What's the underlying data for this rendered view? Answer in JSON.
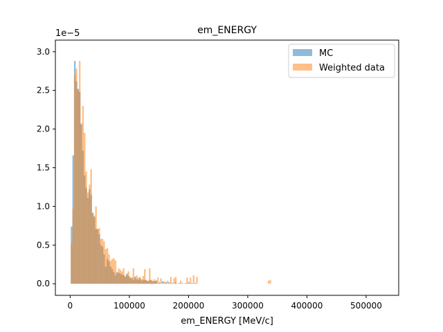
{
  "chart_data": {
    "type": "bar",
    "title": "em_ENERGY",
    "xlabel": "em_ENERGY [MeV/c]",
    "ylabel": "",
    "y_scale_label": "1e−5",
    "x_ticks": [
      0,
      100000,
      200000,
      300000,
      400000,
      500000
    ],
    "x_tick_labels": [
      "0",
      "100000",
      "200000",
      "300000",
      "400000",
      "500000"
    ],
    "y_ticks": [
      0.0,
      0.5,
      1.0,
      1.5,
      2.0,
      2.5,
      3.0
    ],
    "y_tick_labels": [
      "0.0",
      "0.5",
      "1.0",
      "1.5",
      "2.0",
      "2.5",
      "3.0"
    ],
    "xlim": [
      -25000,
      555000
    ],
    "ylim": [
      -0.15,
      3.15
    ],
    "bin_width": 2750,
    "legend_position": "upper right",
    "series": [
      {
        "name": "MC",
        "color": "#1f77b4",
        "alpha": 0.5,
        "x": [
          1000,
          3750,
          6500,
          9250,
          12000,
          14750,
          17500,
          20250,
          23000,
          25750,
          28500,
          31250,
          34000,
          36750,
          39500,
          42250,
          45000,
          47750,
          50500,
          53250,
          56000,
          58750,
          61500,
          64250,
          67000,
          69750,
          72500,
          75250,
          78000,
          80750,
          83500,
          86250,
          89000,
          91750,
          94500,
          97250,
          100000,
          102750,
          105500,
          108250,
          111000,
          113750,
          116500,
          119250,
          122000,
          124750,
          127500,
          130250,
          133000,
          135750,
          138500,
          141250,
          144000,
          149500,
          155000,
          160500,
          166000,
          171500,
          177000,
          182500,
          188000,
          193500,
          199000,
          204500,
          210000
        ],
        "values": [
          0.74,
          1.66,
          2.88,
          2.62,
          2.52,
          2.48,
          2.07,
          1.72,
          1.4,
          1.24,
          1.11,
          1.22,
          1.15,
          0.92,
          0.86,
          0.71,
          0.71,
          0.64,
          0.5,
          0.48,
          0.38,
          0.22,
          0.32,
          0.29,
          0.22,
          0.19,
          0.15,
          0.11,
          0.15,
          0.14,
          0.13,
          0.12,
          0.11,
          0.09,
          0.13,
          0.1,
          0.07,
          0.08,
          0.05,
          0.09,
          0.06,
          0.05,
          0.07,
          0.04,
          0.05,
          0.05,
          0.04,
          0.03,
          0.05,
          0.04,
          0.03,
          0.03,
          0.04,
          0.02,
          0.03,
          0.02,
          0.02,
          0.01,
          0.02,
          0.01,
          0.01,
          0.01,
          0.02,
          0.01,
          0.01
        ]
      },
      {
        "name": "Weighted data",
        "color": "#ff7f0e",
        "alpha": 0.5,
        "x": [
          1000,
          3750,
          6500,
          9250,
          12000,
          14750,
          17500,
          20250,
          23000,
          25750,
          28500,
          31250,
          34000,
          36750,
          39500,
          42250,
          45000,
          47750,
          50500,
          53250,
          56000,
          58750,
          61500,
          64250,
          67000,
          69750,
          72500,
          75250,
          78000,
          80750,
          83500,
          86250,
          89000,
          91750,
          94500,
          97250,
          100000,
          102750,
          105500,
          108250,
          111000,
          113750,
          116500,
          119250,
          122000,
          124750,
          127500,
          130250,
          133000,
          135750,
          138500,
          141250,
          144000,
          146750,
          152250,
          157750,
          163250,
          168750,
          174250,
          177000,
          185250,
          196250,
          201750,
          207250,
          212750,
          334000,
          336750
        ],
        "values": [
          0.52,
          0.97,
          2.7,
          2.78,
          2.5,
          2.88,
          2.05,
          2.3,
          1.95,
          1.45,
          1.18,
          1.28,
          1.48,
          0.9,
          0.88,
          1.0,
          0.7,
          0.72,
          0.58,
          0.58,
          0.55,
          0.45,
          0.46,
          0.38,
          0.3,
          0.32,
          0.33,
          0.3,
          0.14,
          0.2,
          0.18,
          0.16,
          0.2,
          0.1,
          0.12,
          0.16,
          0.09,
          0.07,
          0.2,
          0.08,
          0.11,
          0.08,
          0.09,
          0.06,
          0.1,
          0.19,
          0.05,
          0.04,
          0.2,
          0.05,
          0.04,
          0.06,
          0.04,
          0.08,
          0.07,
          0.03,
          0.04,
          0.09,
          0.07,
          0.09,
          0.04,
          0.08,
          0.08,
          0.11,
          0.09,
          0.04,
          0.05
        ]
      }
    ]
  }
}
